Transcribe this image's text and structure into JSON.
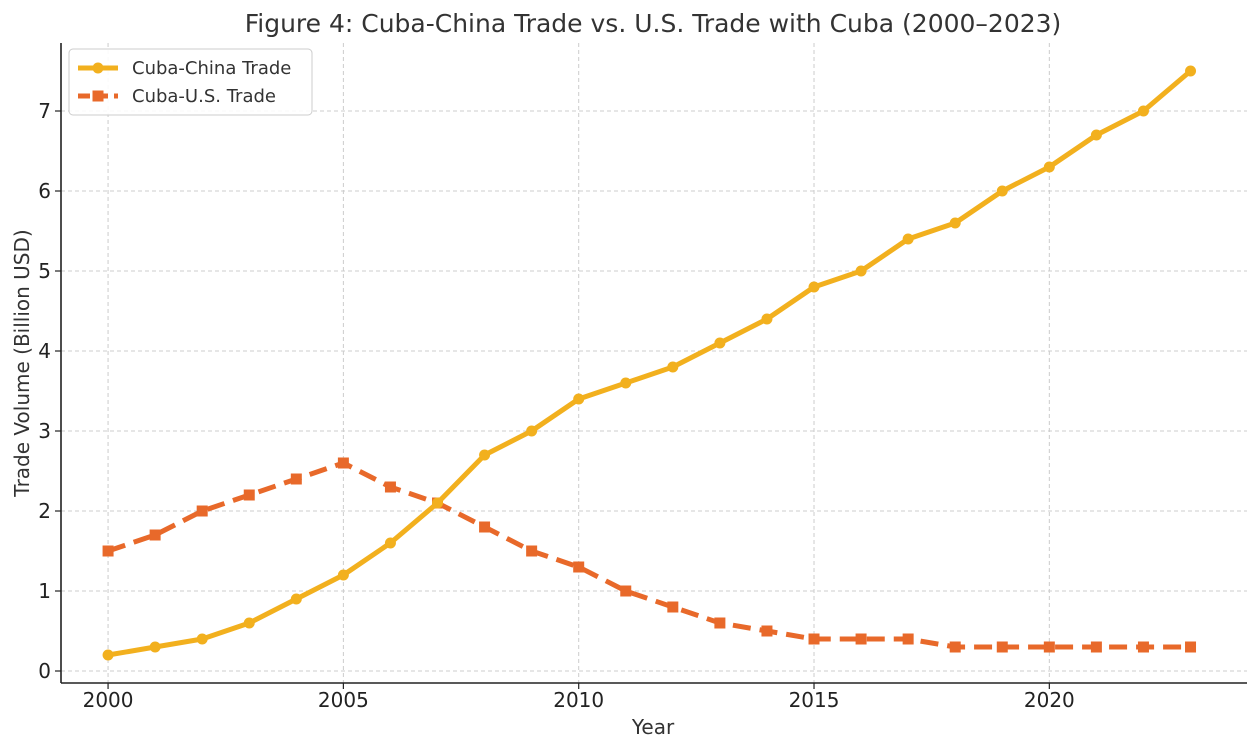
{
  "chart_data": {
    "type": "line",
    "title": "Figure 4: Cuba-China Trade vs. U.S. Trade with Cuba (2000–2023)",
    "xlabel": "Year",
    "ylabel": "Trade Volume (Billion USD)",
    "x": [
      2000,
      2001,
      2002,
      2003,
      2004,
      2005,
      2006,
      2007,
      2008,
      2009,
      2010,
      2011,
      2012,
      2013,
      2014,
      2015,
      2016,
      2017,
      2018,
      2019,
      2020,
      2021,
      2022,
      2023
    ],
    "xlim": [
      1999,
      2024.2
    ],
    "ylim": [
      -0.15,
      7.85
    ],
    "xticks": [
      2000,
      2005,
      2010,
      2015,
      2020
    ],
    "yticks": [
      0,
      1,
      2,
      3,
      4,
      5,
      6,
      7
    ],
    "grid": true,
    "legend_position": "top-left",
    "series": [
      {
        "name": "Cuba-China Trade",
        "style": "solid",
        "marker": "circle",
        "color": "#f2b01e",
        "values": [
          0.2,
          0.3,
          0.4,
          0.6,
          0.9,
          1.2,
          1.6,
          2.1,
          2.7,
          3.0,
          3.4,
          3.6,
          3.8,
          4.1,
          4.4,
          4.8,
          5.0,
          5.4,
          5.6,
          6.0,
          6.3,
          6.7,
          7.0,
          7.5
        ]
      },
      {
        "name": "Cuba-U.S. Trade",
        "style": "dashed",
        "marker": "square",
        "color": "#e8692a",
        "values": [
          1.5,
          1.7,
          2.0,
          2.2,
          2.4,
          2.6,
          2.3,
          2.1,
          1.8,
          1.5,
          1.3,
          1.0,
          0.8,
          0.6,
          0.5,
          0.4,
          0.4,
          0.4,
          0.3,
          0.3,
          0.3,
          0.3,
          0.3,
          0.3
        ]
      }
    ]
  }
}
